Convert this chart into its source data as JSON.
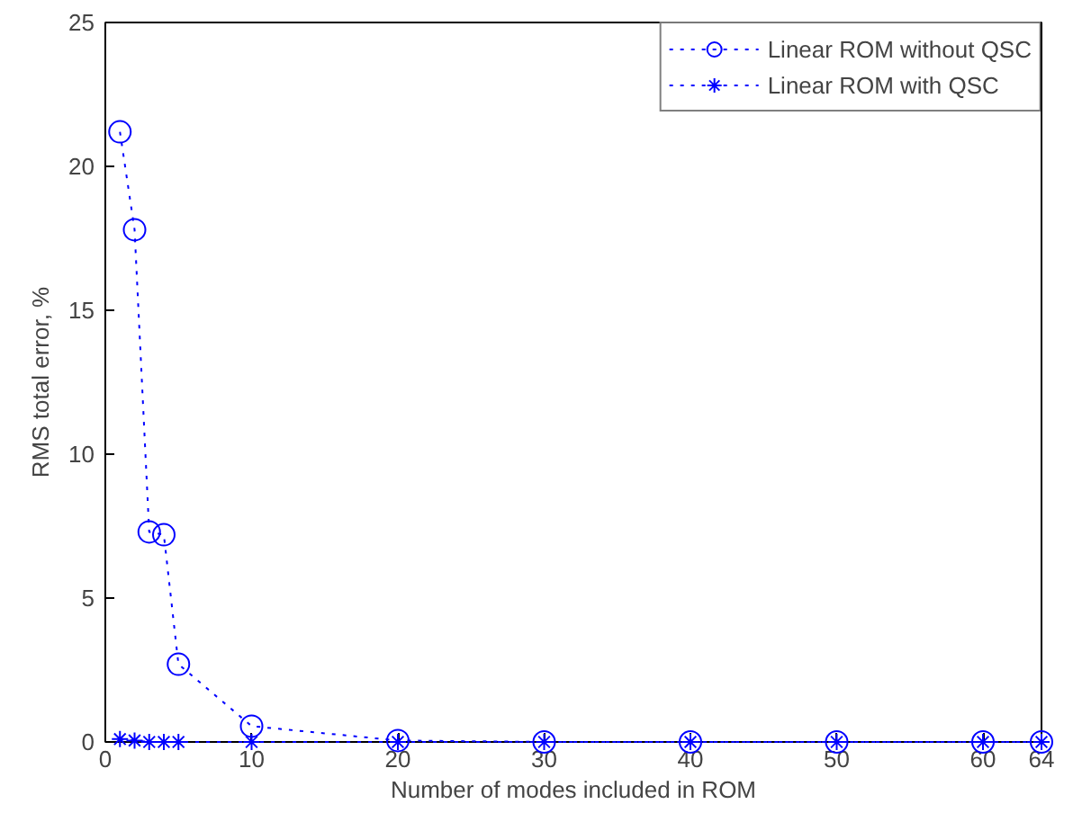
{
  "chart_data": {
    "type": "line",
    "xlabel": "Number of modes included in ROM",
    "ylabel": "RMS total error, %",
    "xlim": [
      0,
      64
    ],
    "ylim": [
      0,
      25
    ],
    "xticks": [
      0,
      10,
      20,
      30,
      40,
      50,
      60,
      64
    ],
    "yticks": [
      0,
      5,
      10,
      15,
      20,
      25
    ],
    "grid": false,
    "legend": "top right",
    "line_style": "dotted",
    "series": [
      {
        "name": "Linear ROM without QSC",
        "color": "#0000ff",
        "marker": "circle",
        "x": [
          1,
          2,
          3,
          4,
          5,
          10,
          20,
          30,
          40,
          50,
          60,
          64
        ],
        "values": [
          21.2,
          17.8,
          7.3,
          7.2,
          2.7,
          0.55,
          0.05,
          0,
          0,
          0,
          0,
          0
        ]
      },
      {
        "name": "Linear ROM with QSC",
        "color": "#0000ff",
        "marker": "cross",
        "x": [
          1,
          2,
          3,
          4,
          5,
          10,
          20,
          30,
          40,
          50,
          60,
          64
        ],
        "values": [
          0.1,
          0.05,
          0,
          0,
          0,
          0,
          0,
          0,
          0,
          0,
          0,
          0
        ]
      }
    ]
  }
}
